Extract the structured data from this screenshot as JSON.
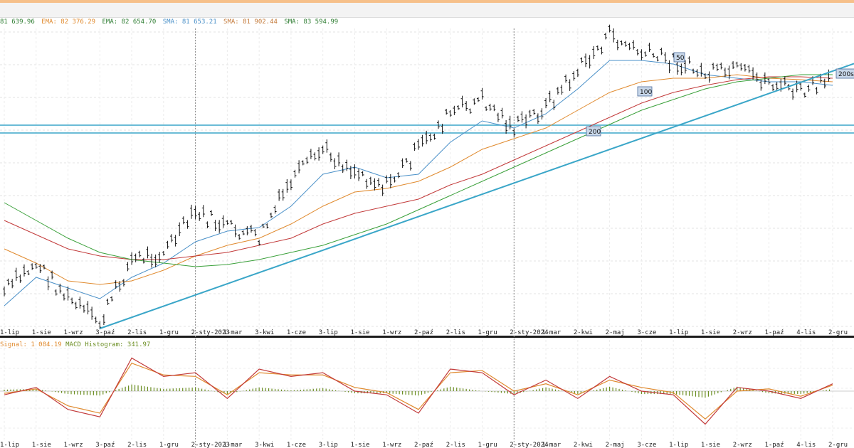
{
  "legend": [
    {
      "text": "81 639.96",
      "color": "#2e7d32"
    },
    {
      "text": "EMA: 82 376.29",
      "color": "#e08a2e"
    },
    {
      "text": "EMA: 82 654.70",
      "color": "#2e7d32"
    },
    {
      "text": "SMA: 81 653.21",
      "color": "#4a90c8"
    },
    {
      "text": "SMA: 81 902.44",
      "color": "#c47a3a"
    },
    {
      "text": "SMA: 83 594.99",
      "color": "#2e7d32"
    }
  ],
  "macd_legend": {
    "signal": "Signal: 1 084.19",
    "hist": "MACD Histogram: 341.97"
  },
  "colors": {
    "price": "#111111",
    "sma50": "#4a90c8",
    "sma100": "#e08a2e",
    "sma200": "#c23a3a",
    "ema": "#3aa03a",
    "trend": "#3aa6c8",
    "macd": "#c23a3a",
    "signal": "#e08a2e",
    "hist": "#6b8e23"
  },
  "markers": {
    "m50": "50",
    "m100": "100",
    "m200": "200",
    "m200sa": "200sa"
  },
  "chart_data": [
    {
      "type": "line",
      "title": "",
      "x": [
        "1-lip",
        "1-sie",
        "1-wrz",
        "3-paź",
        "2-lis",
        "1-gru",
        "2-sty-2023",
        "1-mar",
        "3-kwi",
        "1-cze",
        "3-lip",
        "1-sie",
        "1-wrz",
        "2-paź",
        "2-lis",
        "1-gru",
        "2-sty-2024",
        "1-mar",
        "2-kwi",
        "2-maj",
        "3-cze",
        "1-lip",
        "1-sie",
        "2-wrz",
        "1-paź",
        "4-lis",
        "2-gru"
      ],
      "series": [
        {
          "values": [
            410,
            370,
            420,
            455,
            365,
            355,
            300,
            320,
            335,
            255,
            210,
            240,
            262,
            210,
            160,
            140,
            180,
            150,
            100,
            50,
            75,
            85,
            105,
            100,
            115,
            130,
            115
          ]
        },
        {
          "values": [
            430,
            390,
            405,
            420,
            390,
            370,
            340,
            325,
            320,
            290,
            245,
            235,
            250,
            245,
            200,
            170,
            180,
            160,
            125,
            85,
            85,
            90,
            105,
            110,
            115,
            115,
            120
          ]
        },
        {
          "values": [
            350,
            370,
            395,
            400,
            395,
            380,
            360,
            345,
            335,
            315,
            290,
            270,
            265,
            255,
            235,
            210,
            195,
            180,
            155,
            130,
            115,
            110,
            110,
            105,
            110,
            112,
            115
          ]
        },
        {
          "values": [
            310,
            330,
            350,
            360,
            365,
            365,
            360,
            355,
            345,
            335,
            315,
            300,
            290,
            280,
            260,
            245,
            225,
            205,
            185,
            165,
            145,
            130,
            120,
            112,
            108,
            108,
            110
          ]
        },
        {
          "values": [
            285,
            310,
            335,
            355,
            365,
            370,
            375,
            372,
            365,
            355,
            345,
            330,
            315,
            295,
            275,
            255,
            235,
            215,
            195,
            175,
            155,
            140,
            125,
            115,
            110,
            105,
            105
          ]
        }
      ],
      "levels": [
        176,
        187
      ],
      "trendline": {
        "x": [
          "3-paź",
          "2-gru"
        ],
        "y": [
          462,
          100
        ]
      },
      "ylim": [
        470,
        40
      ],
      "grid": true
    },
    {
      "type": "line",
      "title": "",
      "x": [
        "1-lip",
        "1-sie",
        "1-wrz",
        "3-paź",
        "2-lis",
        "1-gru",
        "2-sty-2023",
        "1-mar",
        "3-kwi",
        "1-cze",
        "3-lip",
        "1-sie",
        "1-wrz",
        "2-paź",
        "2-lis",
        "1-gru",
        "2-sty-2024",
        "1-mar",
        "2-kwi",
        "2-maj",
        "3-cze",
        "1-lip",
        "1-sie",
        "2-wrz",
        "1-paź",
        "4-lis",
        "2-gru"
      ],
      "series": [
        {
          "values": [
            -5,
            5,
            -25,
            -35,
            45,
            20,
            25,
            -10,
            30,
            20,
            25,
            0,
            -5,
            -30,
            30,
            25,
            -5,
            15,
            -10,
            20,
            0,
            -5,
            -45,
            5,
            0,
            -10,
            10
          ]
        },
        {
          "values": [
            -3,
            3,
            -20,
            -30,
            38,
            22,
            20,
            -5,
            25,
            22,
            22,
            5,
            -2,
            -25,
            25,
            28,
            0,
            10,
            -5,
            15,
            5,
            -2,
            -38,
            0,
            3,
            -7,
            8
          ]
        },
        {
          "values": [
            2,
            3,
            -4,
            -6,
            9,
            3,
            5,
            -4,
            5,
            1,
            4,
            -3,
            -3,
            -6,
            6,
            0,
            -4,
            5,
            -4,
            6,
            -4,
            -4,
            -9,
            6,
            -3,
            -4,
            3
          ]
        }
      ],
      "ylim": [
        -60,
        60
      ],
      "grid": true
    }
  ]
}
